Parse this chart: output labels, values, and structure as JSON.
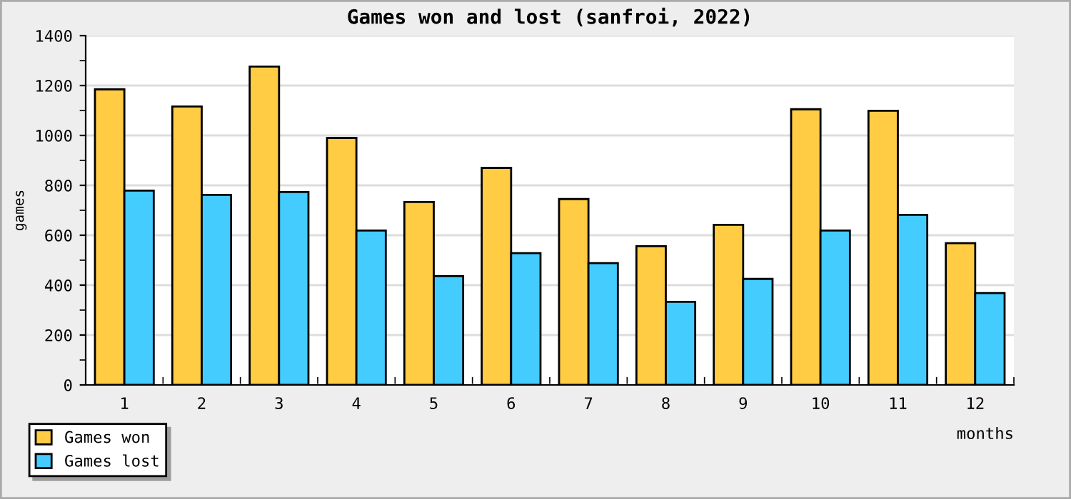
{
  "chart_data": {
    "type": "bar",
    "title": "Games won and lost (sanfroi, 2022)",
    "xlabel": "months",
    "ylabel": "games",
    "categories": [
      "1",
      "2",
      "3",
      "4",
      "5",
      "6",
      "7",
      "8",
      "9",
      "10",
      "11",
      "12"
    ],
    "series": [
      {
        "name": "Games won",
        "color": "#ffcc44",
        "values": [
          1185,
          1116,
          1276,
          990,
          733,
          870,
          745,
          556,
          642,
          1105,
          1099,
          568
        ]
      },
      {
        "name": "Games lost",
        "color": "#44ccff",
        "values": [
          779,
          762,
          773,
          619,
          436,
          528,
          488,
          333,
          425,
          619,
          682,
          368
        ]
      }
    ],
    "ylim": [
      0,
      1400
    ],
    "yticks": [
      0,
      200,
      400,
      600,
      800,
      1000,
      1200,
      1400
    ],
    "grid": "y",
    "legend": "bottom left"
  }
}
